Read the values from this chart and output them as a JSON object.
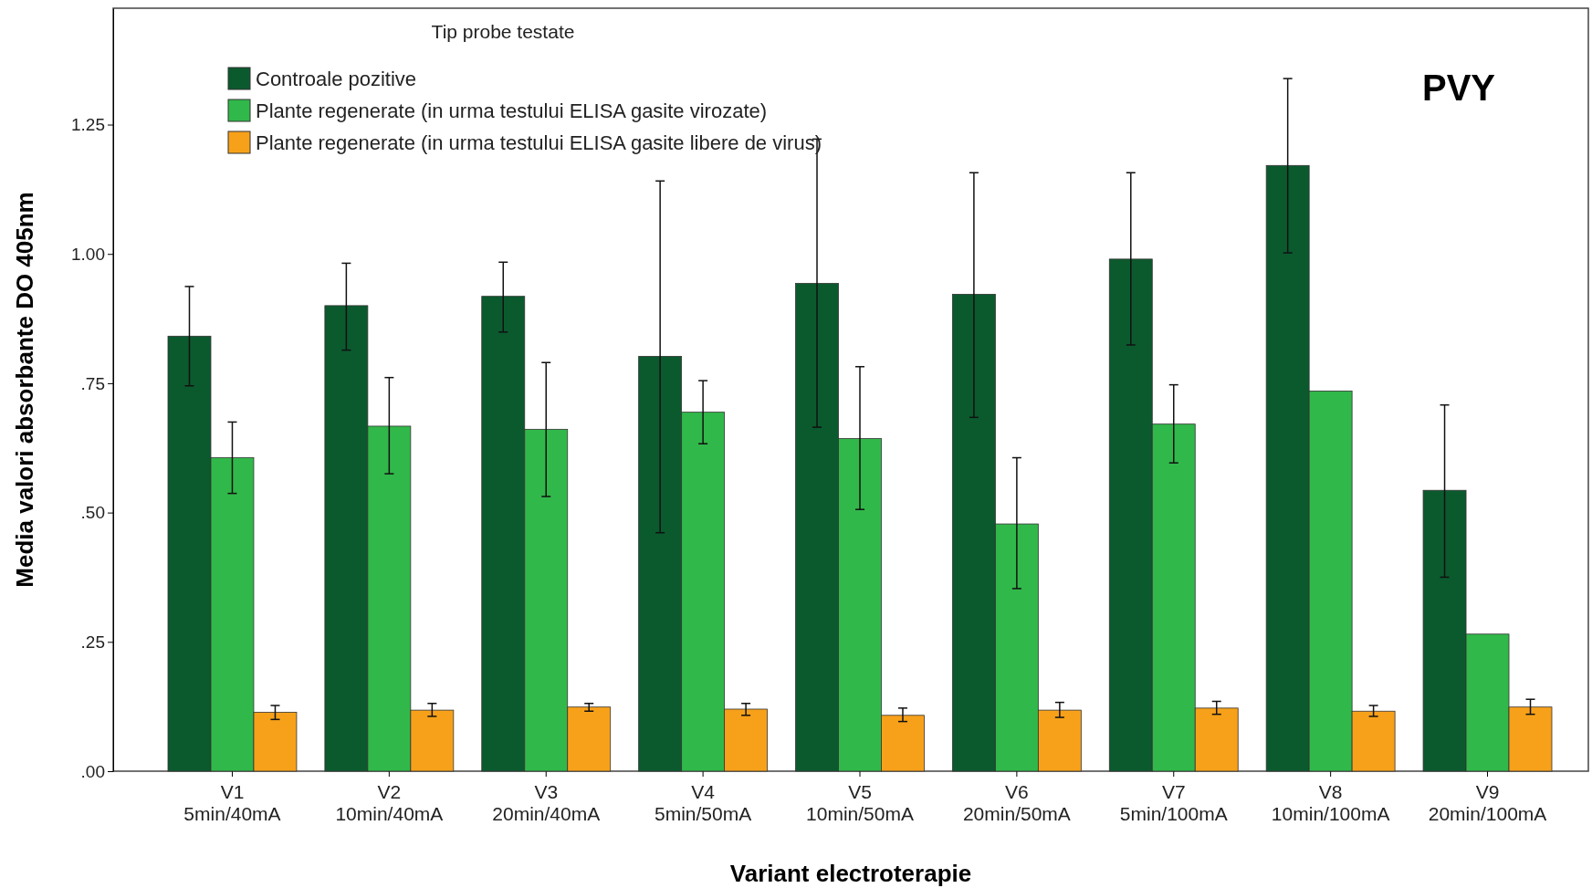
{
  "chart_data": {
    "type": "bar",
    "xlabel": "Variant electroterapie",
    "ylabel": "Media valori absorbante DO 405nm",
    "legend_title": "Tip probe testate",
    "legend": "top left",
    "annotations": [
      "PVY"
    ],
    "categories": [
      "V1\n5min/40mA",
      "V2\n10min/40mA",
      "V3\n20min/40mA",
      "V4\n5min/50mA",
      "V5\n10min/50mA",
      "V6\n20min/50mA",
      "V7\n5min/100mA",
      "V8\n10min/100mA",
      "V9\n20min/100mA"
    ],
    "ylim": [
      0,
      1.475
    ],
    "yticks": [
      {
        "value": 0,
        "label": ".00"
      },
      {
        "value": 0.25,
        "label": ".25"
      },
      {
        "value": 0.5,
        "label": ".50"
      },
      {
        "value": 0.75,
        "label": ".75"
      },
      {
        "value": 1,
        "label": "1.00"
      },
      {
        "value": 1.25,
        "label": "1.25"
      }
    ],
    "grid": false,
    "series": [
      {
        "name": "Controale pozitive",
        "color": "#0b5a2e",
        "values": [
          0.841,
          0.9,
          0.918,
          0.802,
          0.943,
          0.922,
          0.99,
          1.171,
          0.543
        ],
        "errors": [
          [
            0.745,
            0.937
          ],
          [
            0.814,
            0.982
          ],
          [
            0.849,
            0.984
          ],
          [
            0.461,
            1.141
          ],
          [
            0.665,
            1.222
          ],
          [
            0.684,
            1.157
          ],
          [
            0.824,
            1.157
          ],
          [
            1.002,
            1.339
          ],
          [
            0.375,
            0.708
          ]
        ]
      },
      {
        "name": "Plante regenerate (in urma testului ELISA gasite virozate)",
        "color": "#31b84a",
        "values": [
          0.606,
          0.667,
          0.661,
          0.694,
          0.643,
          0.478,
          0.671,
          0.735,
          0.265
        ],
        "errors": [
          [
            0.537,
            0.675
          ],
          [
            0.575,
            0.761
          ],
          [
            0.531,
            0.79
          ],
          [
            0.633,
            0.755
          ],
          [
            0.506,
            0.782
          ],
          [
            0.353,
            0.606
          ],
          [
            0.596,
            0.747
          ],
          null,
          null
        ]
      },
      {
        "name": "Plante regenerate (in urma testului ELISA gasite libere de virus)",
        "color": "#f7a11a",
        "values": [
          0.114,
          0.118,
          0.124,
          0.12,
          0.108,
          0.118,
          0.122,
          0.116,
          0.124
        ],
        "errors": [
          [
            0.1,
            0.127
          ],
          [
            0.106,
            0.131
          ],
          [
            0.116,
            0.131
          ],
          [
            0.108,
            0.131
          ],
          [
            0.096,
            0.122
          ],
          [
            0.104,
            0.133
          ],
          [
            0.11,
            0.135
          ],
          [
            0.106,
            0.127
          ],
          [
            0.11,
            0.139
          ]
        ]
      }
    ]
  }
}
